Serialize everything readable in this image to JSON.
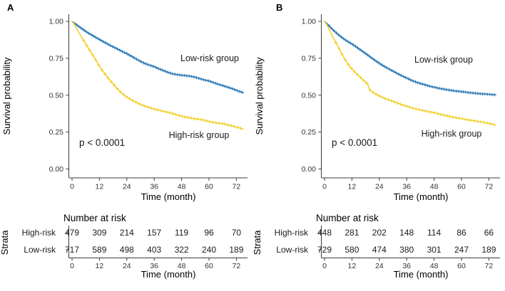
{
  "figure": {
    "background": "#ffffff",
    "risk_title": "Number at risk",
    "strata_label": "Strata",
    "y_ticks": [
      [
        1.0,
        "1.00"
      ],
      [
        0.75,
        "0.75"
      ],
      [
        0.5,
        "0.50"
      ],
      [
        0.25,
        "0.25"
      ],
      [
        0.0,
        "0.00"
      ]
    ],
    "colors": {
      "low_risk": "#2E7BB8",
      "high_risk": "#F1D02F",
      "axis": "#3c3c3c",
      "tick_text": "#333333",
      "text": "#000000"
    }
  },
  "chart_data": [
    {
      "type": "line",
      "subtype": "kaplan-meier",
      "panel": "A",
      "xlabel": "Time (month)",
      "ylabel": "Survival probability",
      "annotation": "p < 0.0001",
      "xlim": [
        0,
        75
      ],
      "ylim": [
        0,
        1
      ],
      "x_ticks": [
        0,
        12,
        24,
        36,
        48,
        60,
        72
      ],
      "grid": false,
      "legend": "inline-labels",
      "series": [
        {
          "name": "Low-risk group",
          "color": "#2E7BB8",
          "censor_start": 2,
          "censor_interval": 1.05,
          "points": [
            [
              0,
              1.0
            ],
            [
              1,
              0.99
            ],
            [
              2,
              0.977
            ],
            [
              3,
              0.965
            ],
            [
              4,
              0.954
            ],
            [
              5,
              0.943
            ],
            [
              6,
              0.932
            ],
            [
              7,
              0.922
            ],
            [
              8,
              0.913
            ],
            [
              9,
              0.904
            ],
            [
              10,
              0.895
            ],
            [
              11,
              0.886
            ],
            [
              12,
              0.877
            ],
            [
              14,
              0.86
            ],
            [
              16,
              0.843
            ],
            [
              18,
              0.827
            ],
            [
              20,
              0.812
            ],
            [
              22,
              0.796
            ],
            [
              24,
              0.781
            ],
            [
              26,
              0.764
            ],
            [
              28,
              0.746
            ],
            [
              30,
              0.729
            ],
            [
              32,
              0.714
            ],
            [
              34,
              0.703
            ],
            [
              36,
              0.693
            ],
            [
              38,
              0.679
            ],
            [
              40,
              0.667
            ],
            [
              42,
              0.655
            ],
            [
              44,
              0.645
            ],
            [
              46,
              0.639
            ],
            [
              48,
              0.635
            ],
            [
              50,
              0.632
            ],
            [
              52,
              0.628
            ],
            [
              54,
              0.621
            ],
            [
              56,
              0.612
            ],
            [
              58,
              0.603
            ],
            [
              60,
              0.596
            ],
            [
              62,
              0.585
            ],
            [
              64,
              0.574
            ],
            [
              66,
              0.565
            ],
            [
              68,
              0.555
            ],
            [
              70,
              0.545
            ],
            [
              72,
              0.533
            ],
            [
              74,
              0.522
            ],
            [
              75,
              0.517
            ]
          ]
        },
        {
          "name": "High-risk group",
          "color": "#F1D02F",
          "censor_start": 5,
          "censor_interval": 1.35,
          "points": [
            [
              0,
              1.0
            ],
            [
              1,
              0.98
            ],
            [
              2,
              0.953
            ],
            [
              3,
              0.925
            ],
            [
              4,
              0.897
            ],
            [
              5,
              0.872
            ],
            [
              6,
              0.847
            ],
            [
              7,
              0.822
            ],
            [
              8,
              0.798
            ],
            [
              9,
              0.774
            ],
            [
              10,
              0.748
            ],
            [
              11,
              0.722
            ],
            [
              12,
              0.696
            ],
            [
              13,
              0.673
            ],
            [
              14,
              0.652
            ],
            [
              15,
              0.632
            ],
            [
              16,
              0.612
            ],
            [
              17,
              0.594
            ],
            [
              18,
              0.576
            ],
            [
              19,
              0.558
            ],
            [
              20,
              0.541
            ],
            [
              21,
              0.525
            ],
            [
              22,
              0.511
            ],
            [
              23,
              0.498
            ],
            [
              24,
              0.487
            ],
            [
              26,
              0.468
            ],
            [
              28,
              0.452
            ],
            [
              30,
              0.437
            ],
            [
              32,
              0.425
            ],
            [
              34,
              0.415
            ],
            [
              36,
              0.406
            ],
            [
              38,
              0.398
            ],
            [
              40,
              0.391
            ],
            [
              42,
              0.384
            ],
            [
              44,
              0.376
            ],
            [
              46,
              0.366
            ],
            [
              48,
              0.358
            ],
            [
              50,
              0.351
            ],
            [
              52,
              0.345
            ],
            [
              54,
              0.34
            ],
            [
              56,
              0.336
            ],
            [
              58,
              0.33
            ],
            [
              60,
              0.322
            ],
            [
              62,
              0.315
            ],
            [
              64,
              0.311
            ],
            [
              66,
              0.307
            ],
            [
              68,
              0.3
            ],
            [
              70,
              0.292
            ],
            [
              72,
              0.284
            ],
            [
              74,
              0.275
            ],
            [
              75,
              0.27
            ]
          ]
        }
      ],
      "number_at_risk": {
        "times": [
          0,
          12,
          24,
          36,
          48,
          60,
          72
        ],
        "rows": [
          {
            "label": "High-risk",
            "values": [
              479,
              309,
              214,
              157,
              119,
              96,
              70
            ]
          },
          {
            "label": "Low-risk",
            "values": [
              717,
              589,
              498,
              403,
              322,
              240,
              189
            ]
          }
        ]
      }
    },
    {
      "type": "line",
      "subtype": "kaplan-meier",
      "panel": "B",
      "xlabel": "Time (month)",
      "ylabel": "Survival probability",
      "annotation": "p < 0.0001",
      "xlim": [
        0,
        75
      ],
      "ylim": [
        0,
        1
      ],
      "x_ticks": [
        0,
        12,
        24,
        36,
        48,
        60,
        72
      ],
      "grid": false,
      "legend": "inline-labels",
      "series": [
        {
          "name": "Low-risk group",
          "color": "#2E7BB8",
          "censor_start": 2,
          "censor_interval": 1.05,
          "points": [
            [
              0,
              1.0
            ],
            [
              1,
              0.986
            ],
            [
              2,
              0.969
            ],
            [
              3,
              0.953
            ],
            [
              4,
              0.938
            ],
            [
              5,
              0.924
            ],
            [
              6,
              0.911
            ],
            [
              7,
              0.898
            ],
            [
              8,
              0.886
            ],
            [
              9,
              0.875
            ],
            [
              10,
              0.865
            ],
            [
              11,
              0.856
            ],
            [
              12,
              0.847
            ],
            [
              14,
              0.826
            ],
            [
              16,
              0.804
            ],
            [
              18,
              0.782
            ],
            [
              20,
              0.759
            ],
            [
              22,
              0.737
            ],
            [
              24,
              0.716
            ],
            [
              26,
              0.696
            ],
            [
              28,
              0.679
            ],
            [
              30,
              0.663
            ],
            [
              32,
              0.646
            ],
            [
              34,
              0.63
            ],
            [
              36,
              0.616
            ],
            [
              38,
              0.601
            ],
            [
              40,
              0.589
            ],
            [
              42,
              0.579
            ],
            [
              44,
              0.57
            ],
            [
              46,
              0.561
            ],
            [
              48,
              0.554
            ],
            [
              50,
              0.547
            ],
            [
              52,
              0.541
            ],
            [
              54,
              0.536
            ],
            [
              56,
              0.531
            ],
            [
              58,
              0.527
            ],
            [
              60,
              0.524
            ],
            [
              62,
              0.52
            ],
            [
              64,
              0.516
            ],
            [
              66,
              0.513
            ],
            [
              68,
              0.51
            ],
            [
              70,
              0.508
            ],
            [
              72,
              0.506
            ],
            [
              74,
              0.503
            ],
            [
              75,
              0.502
            ]
          ]
        },
        {
          "name": "High-risk group",
          "color": "#F1D02F",
          "censor_start": 5,
          "censor_interval": 1.35,
          "points": [
            [
              0,
              1.0
            ],
            [
              1,
              0.977
            ],
            [
              2,
              0.946
            ],
            [
              3,
              0.915
            ],
            [
              4,
              0.884
            ],
            [
              5,
              0.855
            ],
            [
              6,
              0.826
            ],
            [
              7,
              0.797
            ],
            [
              8,
              0.768
            ],
            [
              9,
              0.74
            ],
            [
              10,
              0.714
            ],
            [
              11,
              0.695
            ],
            [
              12,
              0.678
            ],
            [
              13,
              0.661
            ],
            [
              14,
              0.646
            ],
            [
              15,
              0.631
            ],
            [
              16,
              0.616
            ],
            [
              17,
              0.601
            ],
            [
              18,
              0.587
            ],
            [
              19,
              0.573
            ],
            [
              19.5,
              0.547
            ],
            [
              20,
              0.532
            ],
            [
              21,
              0.521
            ],
            [
              22,
              0.511
            ],
            [
              23,
              0.503
            ],
            [
              24,
              0.495
            ],
            [
              26,
              0.481
            ],
            [
              28,
              0.469
            ],
            [
              30,
              0.458
            ],
            [
              32,
              0.446
            ],
            [
              34,
              0.435
            ],
            [
              36,
              0.425
            ],
            [
              38,
              0.415
            ],
            [
              40,
              0.407
            ],
            [
              42,
              0.4
            ],
            [
              44,
              0.393
            ],
            [
              46,
              0.387
            ],
            [
              48,
              0.381
            ],
            [
              50,
              0.373
            ],
            [
              52,
              0.366
            ],
            [
              54,
              0.359
            ],
            [
              56,
              0.352
            ],
            [
              58,
              0.346
            ],
            [
              60,
              0.341
            ],
            [
              62,
              0.335
            ],
            [
              64,
              0.33
            ],
            [
              66,
              0.325
            ],
            [
              68,
              0.32
            ],
            [
              70,
              0.315
            ],
            [
              72,
              0.309
            ],
            [
              74,
              0.301
            ],
            [
              75,
              0.297
            ]
          ]
        }
      ],
      "number_at_risk": {
        "times": [
          0,
          12,
          24,
          36,
          48,
          60,
          72
        ],
        "rows": [
          {
            "label": "High-risk",
            "values": [
              448,
              281,
              202,
              148,
              114,
              86,
              66
            ]
          },
          {
            "label": "Low-risk",
            "values": [
              729,
              580,
              474,
              380,
              301,
              247,
              189
            ]
          }
        ]
      }
    }
  ]
}
